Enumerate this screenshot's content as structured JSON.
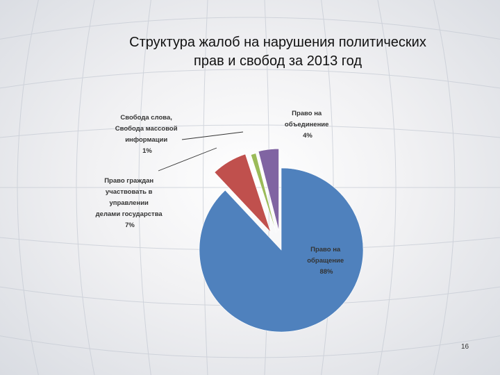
{
  "slide": {
    "title_lines": [
      "Структура жалоб на нарушения политических",
      "прав и свобод за 2013 год"
    ],
    "page_number": "16"
  },
  "chart_data": {
    "type": "pie",
    "title": "Структура жалоб на нарушения политических прав и свобод за 2013 год",
    "slices": [
      {
        "label_lines": [
          "Право на",
          "обращение"
        ],
        "percent_label": "88%",
        "value": 88,
        "color": "#4f81bd"
      },
      {
        "label_lines": [
          "Право граждан",
          "участвовать в",
          "управлении",
          "делами государства"
        ],
        "percent_label": "7%",
        "value": 7,
        "color": "#c0504d"
      },
      {
        "label_lines": [
          "Свобода слова,",
          "Свобода массовой",
          "информации"
        ],
        "percent_label": "1%",
        "value": 1,
        "color": "#9bbb59"
      },
      {
        "label_lines": [
          "Право на",
          "объединение"
        ],
        "percent_label": "4%",
        "value": 4,
        "color": "#8064a2"
      }
    ],
    "exploded": true
  }
}
